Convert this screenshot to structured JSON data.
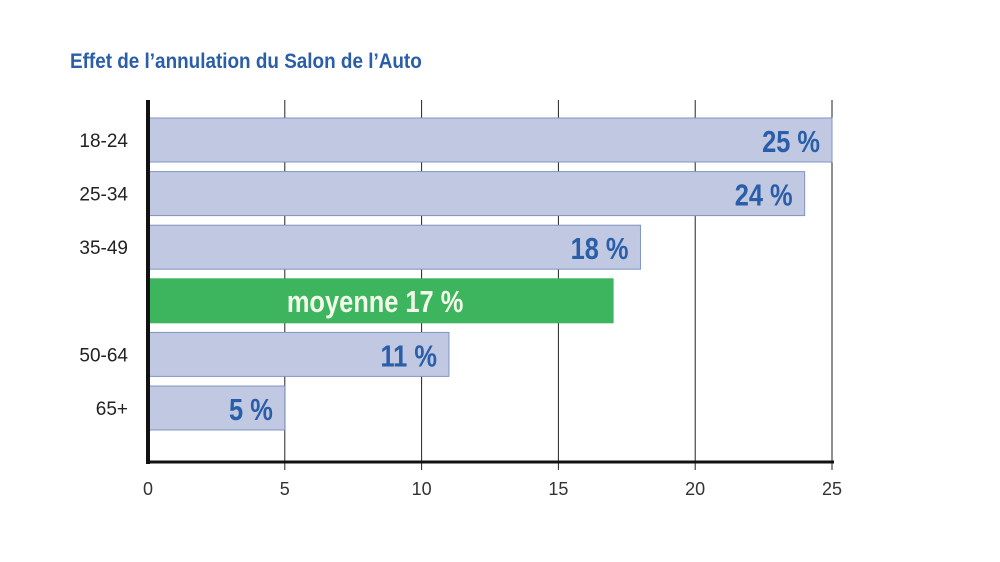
{
  "chart_data": {
    "type": "bar",
    "orientation": "horizontal",
    "title": "Effet de l’annulation du Salon de l’Auto",
    "categories": [
      "18-24",
      "25-34",
      "35-49",
      "",
      "50-64",
      "65+"
    ],
    "values": [
      25,
      24,
      18,
      17,
      11,
      5
    ],
    "value_labels": [
      "25 %",
      "24 %",
      "18 %",
      "moyenne 17 %",
      "11 %",
      "5 %"
    ],
    "highlight_index": 3,
    "xlim": [
      0,
      25
    ],
    "xticks": [
      0,
      5,
      10,
      15,
      20,
      25
    ],
    "xlabel": "",
    "ylabel": "",
    "grid": true,
    "colors": {
      "bar": "#c0c8e2",
      "bar_edge": "#7f93c4",
      "highlight": "#3db55e",
      "label": "#2a5ea8",
      "highlight_label": "#f2fbe9"
    }
  }
}
